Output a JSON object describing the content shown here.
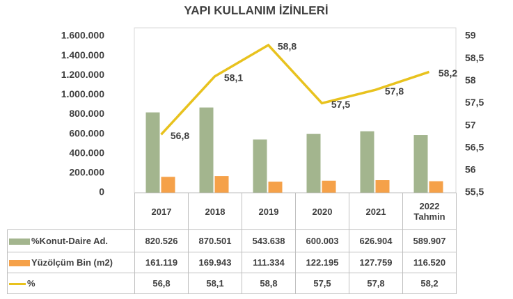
{
  "chart_data": {
    "type": "bar",
    "title": "YAPI KULLANIM İZİNLERİ",
    "categories": [
      "2017",
      "2018",
      "2019",
      "2020",
      "2021",
      "2022 Tahmin"
    ],
    "series": [
      {
        "name": "%Konut-Daire Ad.",
        "type": "bar",
        "color": "#a3b58e",
        "values": [
          820526,
          870501,
          543638,
          600003,
          626904,
          589907
        ],
        "value_labels": [
          "820.526",
          "870.501",
          "543.638",
          "600.003",
          "626.904",
          "589.907"
        ]
      },
      {
        "name": "Yüzölçüm Bin (m2)",
        "type": "bar",
        "color": "#f5a149",
        "values": [
          161119,
          169943,
          111334,
          122195,
          127759,
          116520
        ],
        "value_labels": [
          "161.119",
          "169.943",
          "111.334",
          "122.195",
          "127.759",
          "116.520"
        ]
      },
      {
        "name": "%",
        "type": "line",
        "axis": "y2",
        "color": "#e8c21e",
        "values": [
          56.8,
          58.1,
          58.8,
          57.5,
          57.8,
          58.2
        ],
        "value_labels": [
          "56,8",
          "58,1",
          "58,8",
          "57,5",
          "57,8",
          "58,2"
        ]
      }
    ],
    "ylim": [
      0,
      1600000
    ],
    "yticks": [
      0,
      {
        "value": 200000,
        "label": "200.000"
      },
      {
        "value": 400000,
        "label": "400.000"
      },
      {
        "value": 600000,
        "label": "600.000"
      },
      {
        "value": 800000,
        "label": "800.000"
      },
      {
        "value": 1000000,
        "label": "1.000.000"
      },
      {
        "value": 1200000,
        "label": "1.200.000"
      },
      {
        "value": 1400000,
        "label": "1.400.000"
      },
      {
        "value": 1600000,
        "label": "1.600.000"
      }
    ],
    "y2lim": [
      55.5,
      59
    ],
    "y2ticks": [
      {
        "value": 55.5,
        "label": "55,5"
      },
      56,
      {
        "value": 56.5,
        "label": "56,5"
      },
      57,
      {
        "value": 57.5,
        "label": "57,5"
      },
      58,
      {
        "value": 58.5,
        "label": "58,5"
      },
      59
    ]
  }
}
